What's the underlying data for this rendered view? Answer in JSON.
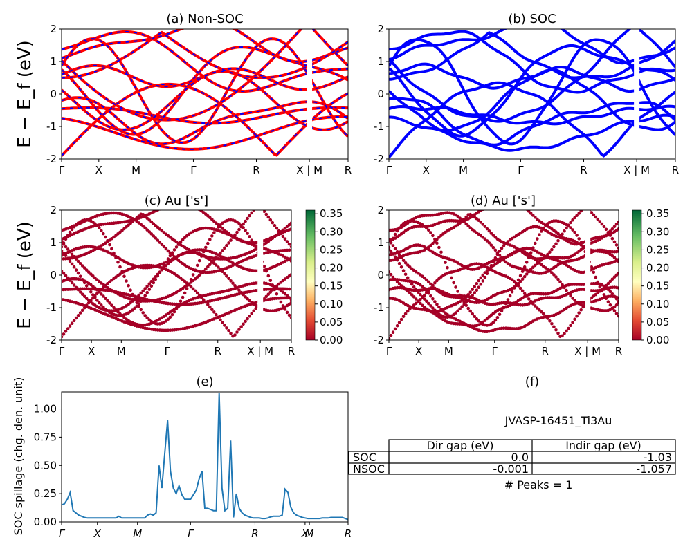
{
  "chart_data": [
    {
      "type": "line",
      "title": "(a) Non-SOC",
      "ylabel": "E − E_f (eV)",
      "ylim": [
        -2,
        2
      ],
      "yticks": [
        "2",
        "1",
        "0",
        "-1",
        "-2"
      ],
      "xticks": [
        "Γ",
        "X",
        "M",
        "Γ",
        "R",
        "X | M",
        "R"
      ],
      "series_colors": [
        "#ff0000",
        "#0000ff"
      ]
    },
    {
      "type": "line",
      "title": "(b) SOC",
      "ylim": [
        -2,
        2
      ],
      "yticks": [
        "2",
        "1",
        "0",
        "-1",
        "-2"
      ],
      "xticks": [
        "Γ",
        "X",
        "M",
        "Γ",
        "R",
        "X | M",
        "R"
      ],
      "series_colors": [
        "#0000ff"
      ]
    },
    {
      "type": "scatter",
      "title": "(c)  Au ['s']",
      "ylabel": "E − E_f (eV)",
      "ylim": [
        -2,
        2
      ],
      "yticks": [
        "2",
        "1",
        "0",
        "-1",
        "-2"
      ],
      "xticks": [
        "Γ",
        "X",
        "M",
        "Γ",
        "R",
        "X | M",
        "R"
      ],
      "colorbar": {
        "ticks": [
          "0.35",
          "0.30",
          "0.25",
          "0.20",
          "0.15",
          "0.10",
          "0.05",
          "0.00"
        ],
        "range": [
          0,
          0.36
        ],
        "colormap": "RdYlGn"
      }
    },
    {
      "type": "scatter",
      "title": "(d) Au ['s']",
      "ylim": [
        -2,
        2
      ],
      "yticks": [
        "2",
        "1",
        "0",
        "-1",
        "-2"
      ],
      "xticks": [
        "Γ",
        "X",
        "M",
        "Γ",
        "R",
        "X | M",
        "R"
      ],
      "colorbar": {
        "ticks": [
          "0.35",
          "0.30",
          "0.25",
          "0.20",
          "0.15",
          "0.10",
          "0.05",
          "0.00"
        ],
        "range": [
          0,
          0.36
        ],
        "colormap": "RdYlGn"
      }
    },
    {
      "type": "line",
      "title": "(e)",
      "ylabel": "SOC spillage (chg. den. unit)",
      "ylim": [
        0,
        1.15
      ],
      "yticks": [
        "1.00",
        "0.75",
        "0.50",
        "0.25",
        "0.00"
      ],
      "xticks": [
        "Γ",
        "X",
        "M",
        "Γ",
        "R",
        "X",
        "M",
        "R"
      ],
      "x": [
        0,
        1,
        2,
        3,
        4,
        5,
        6,
        7,
        8,
        9,
        10,
        11,
        12,
        13,
        14,
        15,
        16,
        17,
        18,
        19,
        20,
        21,
        22,
        23,
        24,
        25,
        26,
        27,
        28,
        29,
        30,
        31,
        32,
        33,
        34,
        35,
        36,
        37,
        38,
        39,
        40,
        41,
        42,
        43,
        44,
        45,
        46,
        47,
        48,
        49,
        50,
        51,
        52,
        53,
        54,
        55,
        56,
        57,
        58,
        59,
        60,
        61,
        62,
        63,
        64,
        65,
        66,
        67,
        68,
        69,
        70,
        71,
        72,
        73,
        74,
        75,
        76,
        77,
        78,
        79,
        80,
        81,
        82,
        83,
        84,
        85,
        86,
        87,
        88,
        89,
        90,
        91,
        92,
        93,
        94,
        95,
        96,
        97,
        98,
        99,
        100
      ],
      "values": [
        0.15,
        0.16,
        0.2,
        0.26,
        0.1,
        0.08,
        0.06,
        0.05,
        0.04,
        0.035,
        0.035,
        0.035,
        0.035,
        0.035,
        0.035,
        0.035,
        0.035,
        0.035,
        0.035,
        0.035,
        0.05,
        0.035,
        0.035,
        0.035,
        0.035,
        0.035,
        0.035,
        0.035,
        0.035,
        0.035,
        0.06,
        0.07,
        0.06,
        0.08,
        0.5,
        0.3,
        0.6,
        0.9,
        0.45,
        0.3,
        0.25,
        0.32,
        0.24,
        0.2,
        0.2,
        0.2,
        0.24,
        0.28,
        0.38,
        0.45,
        0.12,
        0.12,
        0.11,
        0.1,
        0.1,
        1.14,
        0.3,
        0.1,
        0.12,
        0.72,
        0.04,
        0.25,
        0.12,
        0.08,
        0.06,
        0.05,
        0.04,
        0.035,
        0.035,
        0.035,
        0.03,
        0.03,
        0.035,
        0.045,
        0.05,
        0.05,
        0.05,
        0.06,
        0.29,
        0.26,
        0.13,
        0.08,
        0.06,
        0.05,
        0.04,
        0.035,
        0.03,
        0.03,
        0.03,
        0.03,
        0.03,
        0.035,
        0.035,
        0.035,
        0.04,
        0.04,
        0.04,
        0.04,
        0.04,
        0.03,
        0.02
      ],
      "color": "#1f77b4"
    }
  ],
  "panel_f": {
    "title": "(f)",
    "material": "JVASP-16451_Ti3Au",
    "table": {
      "headers": [
        "Dir gap (eV)",
        "Indir gap (eV)"
      ],
      "rows": [
        {
          "label": "SOC",
          "dir": "0.0",
          "indir": "-1.03"
        },
        {
          "label": "NSOC",
          "dir": "-0.001",
          "indir": "-1.057"
        }
      ]
    },
    "peaks": "# Peaks = 1"
  }
}
